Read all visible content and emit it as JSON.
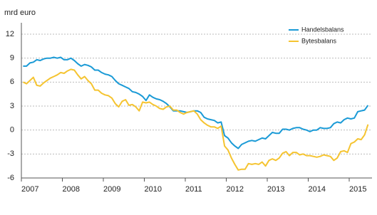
{
  "chart_data": {
    "type": "line",
    "ylabel": "mrd euro",
    "categories": [
      "2007",
      null,
      null,
      null,
      null,
      null,
      null,
      null,
      null,
      null,
      null,
      null,
      "2008",
      null,
      null,
      null,
      null,
      null,
      null,
      null,
      null,
      null,
      null,
      null,
      "2009",
      null,
      null,
      null,
      null,
      null,
      null,
      null,
      null,
      null,
      null,
      null,
      "2010",
      null,
      null,
      null,
      null,
      null,
      null,
      null,
      null,
      null,
      null,
      null,
      "2011",
      null,
      null,
      null,
      null,
      null,
      null,
      null,
      null,
      null,
      null,
      null,
      "2012",
      null,
      null,
      null,
      null,
      null,
      null,
      null,
      null,
      null,
      null,
      null,
      "2013",
      null,
      null,
      null,
      null,
      null,
      null,
      null,
      null,
      null,
      null,
      null,
      "2014",
      null,
      null,
      null,
      null,
      null,
      null,
      null,
      null,
      null,
      null,
      null,
      "2015",
      null,
      null,
      null,
      null,
      null
    ],
    "series": [
      {
        "name": "Handelsbalans",
        "color": "#1a9ad6",
        "values": [
          8.0,
          8.0,
          8.4,
          8.5,
          8.8,
          8.7,
          8.9,
          9.0,
          9.0,
          9.1,
          9.0,
          9.1,
          8.8,
          8.8,
          9.0,
          8.7,
          8.3,
          8.0,
          8.2,
          8.1,
          7.9,
          7.5,
          7.5,
          7.2,
          7.0,
          6.9,
          6.7,
          6.2,
          5.8,
          5.6,
          5.4,
          5.2,
          4.8,
          4.7,
          4.5,
          4.2,
          3.7,
          4.4,
          4.1,
          3.9,
          3.8,
          3.6,
          3.3,
          2.9,
          2.4,
          2.4,
          2.4,
          2.3,
          2.2,
          2.3,
          2.4,
          2.4,
          2.2,
          1.6,
          1.4,
          1.3,
          1.2,
          0.9,
          1.0,
          -0.7,
          -1.0,
          -1.6,
          -2.0,
          -2.3,
          -1.8,
          -1.6,
          -1.4,
          -1.3,
          -1.4,
          -1.2,
          -1.0,
          -1.1,
          -0.7,
          -0.3,
          -0.4,
          -0.4,
          0.1,
          0.1,
          0.0,
          0.2,
          0.3,
          0.3,
          0.1,
          0.0,
          -0.2,
          0.0,
          0.0,
          0.3,
          0.2,
          0.2,
          0.3,
          0.8,
          1.0,
          0.9,
          1.3,
          1.5,
          1.4,
          1.5,
          2.3,
          2.4,
          2.5,
          3.1
        ]
      },
      {
        "name": "Bytesbalans",
        "color": "#f5c431",
        "values": [
          6.0,
          5.8,
          6.2,
          6.6,
          5.6,
          5.5,
          5.9,
          6.2,
          6.5,
          6.7,
          6.9,
          7.2,
          7.1,
          7.4,
          7.6,
          7.5,
          6.9,
          6.4,
          6.7,
          6.2,
          5.8,
          5.0,
          5.0,
          4.6,
          4.4,
          4.3,
          4.0,
          3.3,
          2.9,
          3.6,
          3.8,
          3.1,
          3.2,
          2.9,
          2.4,
          3.5,
          3.4,
          3.5,
          3.2,
          3.0,
          2.7,
          2.6,
          2.9,
          3.0,
          2.5,
          2.5,
          2.2,
          2.0,
          2.2,
          2.3,
          2.4,
          2.0,
          1.3,
          0.9,
          0.6,
          0.4,
          0.4,
          0.2,
          0.5,
          -2.0,
          -2.5,
          -3.5,
          -4.3,
          -5.0,
          -4.9,
          -4.9,
          -4.2,
          -4.3,
          -4.2,
          -4.3,
          -4.0,
          -4.5,
          -3.8,
          -3.6,
          -3.8,
          -3.5,
          -2.9,
          -2.7,
          -3.2,
          -2.8,
          -2.8,
          -3.1,
          -3.0,
          -3.2,
          -3.2,
          -3.3,
          -3.4,
          -3.3,
          -3.1,
          -3.2,
          -3.3,
          -3.8,
          -3.5,
          -2.7,
          -2.6,
          -2.8,
          -1.7,
          -1.5,
          -1.1,
          -1.2,
          -0.6,
          0.7
        ]
      }
    ],
    "ylim": [
      -6,
      12
    ],
    "yticks": [
      -6,
      -3,
      0,
      3,
      6,
      9,
      12
    ],
    "grid": true,
    "legend": "upper right"
  }
}
